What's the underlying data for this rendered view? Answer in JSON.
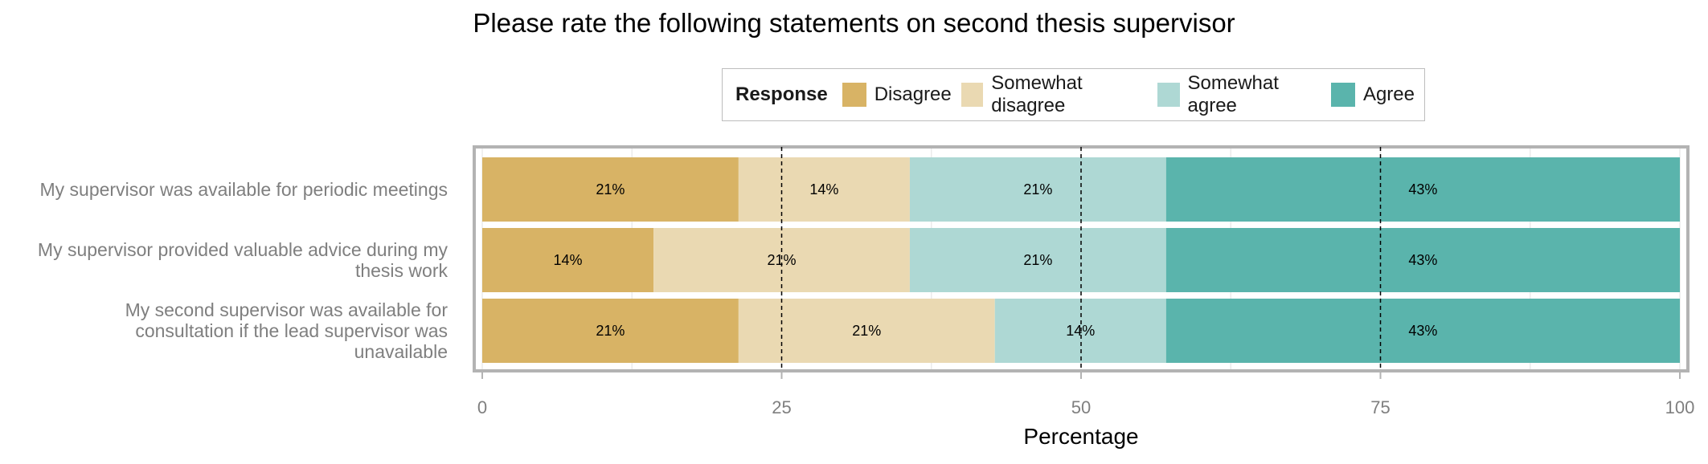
{
  "chart_data": {
    "type": "bar",
    "stacked": true,
    "orientation": "horizontal",
    "title": "Please rate the following statements on second thesis supervisor",
    "xlabel": "Percentage",
    "ylabel": "",
    "xlim": [
      0,
      100
    ],
    "x_ticks": [
      "0",
      "25",
      "50",
      "75",
      "100"
    ],
    "reference_lines": [
      25,
      50,
      75
    ],
    "legend": {
      "title": "Response",
      "position": "top"
    },
    "categories": [
      "My supervisor was available for periodic meetings",
      "My supervisor provided valuable advice during my thesis work",
      "My second supervisor was available for consultation if the lead supervisor was unavailable"
    ],
    "category_lines": [
      [
        "My supervisor was available for periodic meetings"
      ],
      [
        "My supervisor provided valuable advice during my",
        "thesis work"
      ],
      [
        "My second supervisor was available for",
        "consultation if the lead supervisor was",
        "unavailable"
      ]
    ],
    "series": [
      {
        "name": "Disagree",
        "color": "#D8B365",
        "values": [
          21.4,
          14.3,
          21.4
        ],
        "labels": [
          "21%",
          "14%",
          "21%"
        ]
      },
      {
        "name": "Somewhat disagree",
        "color": "#EAD9B2",
        "values": [
          14.3,
          21.4,
          21.4
        ],
        "labels": [
          "14%",
          "21%",
          "21%"
        ]
      },
      {
        "name": "Somewhat agree",
        "color": "#AED8D4",
        "values": [
          21.4,
          21.4,
          14.3
        ],
        "labels": [
          "21%",
          "21%",
          "14%"
        ]
      },
      {
        "name": "Agree",
        "color": "#5AB4AC",
        "values": [
          42.9,
          42.9,
          42.9
        ],
        "labels": [
          "43%",
          "43%",
          "43%"
        ]
      }
    ]
  }
}
